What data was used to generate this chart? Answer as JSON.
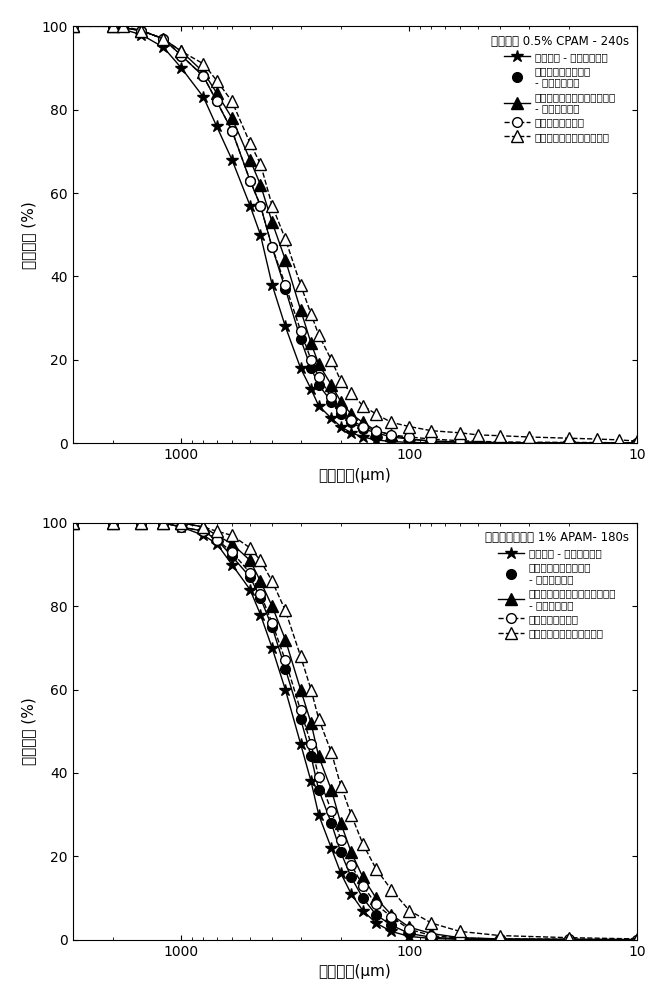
{
  "top_title": "太湖淤泥 0.5% CPAM - 240s",
  "bottom_title": "江宁污水厂污水 1% APAM- 180s",
  "xlabel": "团粒大小(μm)",
  "ylabel": "体积分数 (%)",
  "legend1": [
    "初始团粒 - 图像方法量化",
    "本发明测量后的团粒\n- 图像方法量化",
    "常规激光粒度仪测量后的团粒\n- 图像方法量化",
    "本发明测量的团粒",
    "常规激光粒度仪测量的团粒"
  ],
  "legend2": [
    "初始团粒 - 图像方法量化",
    "本发明测量过后的团粒\n- 图像方法量化",
    "常规激光粒度仪测量量后的团粒\n- 图像方法量化",
    "本发明测量的团粒",
    "常规激光粒度仪测量的团粒"
  ],
  "top_series": {
    "star_filled": {
      "x": [
        3000,
        2000,
        1500,
        1200,
        1000,
        800,
        700,
        600,
        500,
        450,
        400,
        350,
        300,
        270,
        250,
        220,
        200,
        180,
        160,
        140,
        120,
        100,
        80,
        60,
        40,
        20,
        10
      ],
      "y": [
        100,
        100,
        98,
        95,
        90,
        83,
        76,
        68,
        57,
        50,
        38,
        28,
        18,
        13,
        9,
        6,
        4,
        2.5,
        1.5,
        0.8,
        0.4,
        0.2,
        0.1,
        0.05,
        0.02,
        0.01,
        0.005
      ]
    },
    "circle_filled": {
      "x": [
        3000,
        2000,
        1500,
        1200,
        1000,
        800,
        700,
        600,
        500,
        450,
        400,
        350,
        300,
        270,
        250,
        220,
        200,
        180,
        160,
        140,
        120,
        100,
        80,
        60,
        40,
        20,
        10
      ],
      "y": [
        100,
        100,
        99,
        97,
        93,
        88,
        82,
        75,
        63,
        57,
        47,
        37,
        25,
        18,
        14,
        10,
        7,
        5,
        3.5,
        2.5,
        1.5,
        1,
        0.5,
        0.3,
        0.1,
        0.05,
        0.02
      ]
    },
    "triangle_filled": {
      "x": [
        3000,
        2000,
        1500,
        1200,
        1000,
        800,
        700,
        600,
        500,
        450,
        400,
        350,
        300,
        270,
        250,
        220,
        200,
        180,
        160,
        140,
        120,
        100,
        80,
        60,
        40,
        20,
        10
      ],
      "y": [
        100,
        100,
        99,
        97,
        94,
        89,
        84,
        78,
        68,
        62,
        53,
        44,
        32,
        24,
        19,
        14,
        10,
        7,
        5,
        3,
        2,
        1,
        0.5,
        0.3,
        0.15,
        0.05,
        0.02
      ]
    },
    "circle_open": {
      "x": [
        3000,
        2000,
        1500,
        1200,
        1000,
        800,
        700,
        600,
        500,
        450,
        400,
        350,
        300,
        270,
        250,
        220,
        200,
        180,
        160,
        140,
        120,
        100,
        80,
        60,
        40,
        20,
        10
      ],
      "y": [
        100,
        100,
        99,
        97,
        93,
        88,
        82,
        75,
        63,
        57,
        47,
        38,
        27,
        20,
        16,
        11,
        8,
        5.5,
        4,
        3,
        2,
        1.5,
        1,
        0.6,
        0.3,
        0.2,
        0.1
      ]
    },
    "triangle_open": {
      "x": [
        3000,
        2000,
        1800,
        1500,
        1200,
        1000,
        800,
        700,
        600,
        500,
        450,
        400,
        350,
        300,
        270,
        250,
        220,
        200,
        180,
        160,
        140,
        120,
        100,
        80,
        60,
        50,
        40,
        30,
        20,
        15,
        12,
        10
      ],
      "y": [
        100,
        100,
        100,
        99,
        97,
        94,
        91,
        87,
        82,
        72,
        67,
        57,
        49,
        38,
        31,
        26,
        20,
        15,
        12,
        9,
        7,
        5,
        4,
        3,
        2.5,
        2,
        1.8,
        1.5,
        1.2,
        1,
        0.8,
        0.5
      ]
    }
  },
  "bottom_series": {
    "star_filled": {
      "x": [
        3000,
        2000,
        1500,
        1200,
        1000,
        800,
        700,
        600,
        500,
        450,
        400,
        350,
        300,
        270,
        250,
        220,
        200,
        180,
        160,
        140,
        120,
        100,
        80,
        60,
        40,
        20,
        10
      ],
      "y": [
        100,
        100,
        100,
        100,
        99,
        97,
        95,
        90,
        84,
        78,
        70,
        60,
        47,
        38,
        30,
        22,
        16,
        11,
        7,
        4,
        2,
        0.8,
        0.3,
        0.1,
        0.05,
        0.02,
        0.01
      ]
    },
    "circle_filled": {
      "x": [
        3000,
        2000,
        1500,
        1200,
        1000,
        800,
        700,
        600,
        500,
        450,
        400,
        350,
        300,
        270,
        250,
        220,
        200,
        180,
        160,
        140,
        120,
        100,
        80,
        60,
        40,
        20,
        10
      ],
      "y": [
        100,
        100,
        100,
        100,
        99,
        98,
        96,
        92,
        87,
        82,
        75,
        65,
        53,
        44,
        36,
        28,
        21,
        15,
        10,
        6,
        3.5,
        1.5,
        0.6,
        0.2,
        0.1,
        0.04,
        0.02
      ]
    },
    "triangle_filled": {
      "x": [
        3000,
        2000,
        1500,
        1200,
        1000,
        800,
        700,
        600,
        500,
        450,
        400,
        350,
        300,
        270,
        250,
        220,
        200,
        180,
        160,
        140,
        120,
        100,
        80,
        60,
        40,
        20,
        10
      ],
      "y": [
        100,
        100,
        100,
        100,
        100,
        99,
        97,
        95,
        91,
        86,
        80,
        72,
        60,
        52,
        44,
        36,
        28,
        21,
        15,
        10,
        6,
        3,
        1.5,
        0.5,
        0.2,
        0.1,
        0.04
      ]
    },
    "circle_open": {
      "x": [
        3000,
        2000,
        1500,
        1200,
        1000,
        800,
        700,
        600,
        500,
        450,
        400,
        350,
        300,
        270,
        250,
        220,
        200,
        180,
        160,
        140,
        120,
        100,
        80,
        60,
        40,
        20,
        10
      ],
      "y": [
        100,
        100,
        100,
        100,
        99,
        98,
        96,
        93,
        88,
        83,
        76,
        67,
        55,
        47,
        39,
        31,
        24,
        18,
        13,
        8.5,
        5.5,
        2.5,
        1,
        0.4,
        0.2,
        0.1,
        0.05
      ]
    },
    "triangle_open": {
      "x": [
        3000,
        2000,
        1500,
        1200,
        1000,
        800,
        700,
        600,
        500,
        450,
        400,
        350,
        300,
        270,
        250,
        220,
        200,
        180,
        160,
        140,
        120,
        100,
        80,
        60,
        40,
        20,
        10
      ],
      "y": [
        100,
        100,
        100,
        100,
        100,
        99,
        98,
        97,
        94,
        91,
        86,
        79,
        68,
        60,
        53,
        45,
        37,
        30,
        23,
        17,
        12,
        7,
        4,
        2,
        1,
        0.5,
        0.2
      ]
    }
  }
}
